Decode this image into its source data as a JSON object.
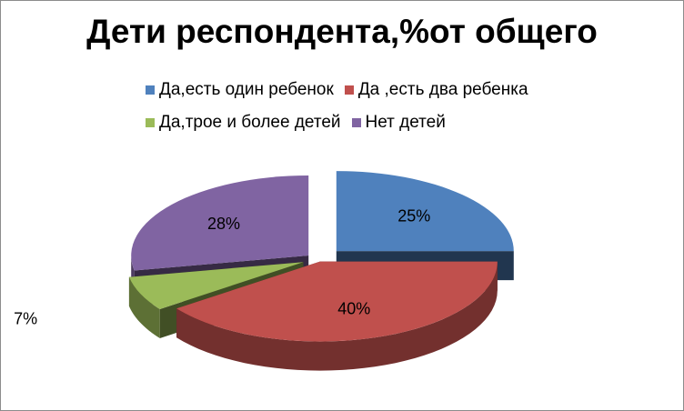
{
  "chart_data": {
    "type": "pie",
    "title": "Дети респондента,%от общего",
    "legend_position": "top",
    "categories": [
      "Да,есть один ребенок",
      "Да ,есть два ребенка",
      "Да,трое и более детей",
      "Нет детей"
    ],
    "values": [
      25,
      40,
      7,
      28
    ],
    "data_labels": [
      "25%",
      "40%",
      "7%",
      "28%"
    ],
    "colors": [
      "#4f81bd",
      "#c0504d",
      "#9bbb59",
      "#8064a2"
    ],
    "style": "3d-exploded"
  }
}
